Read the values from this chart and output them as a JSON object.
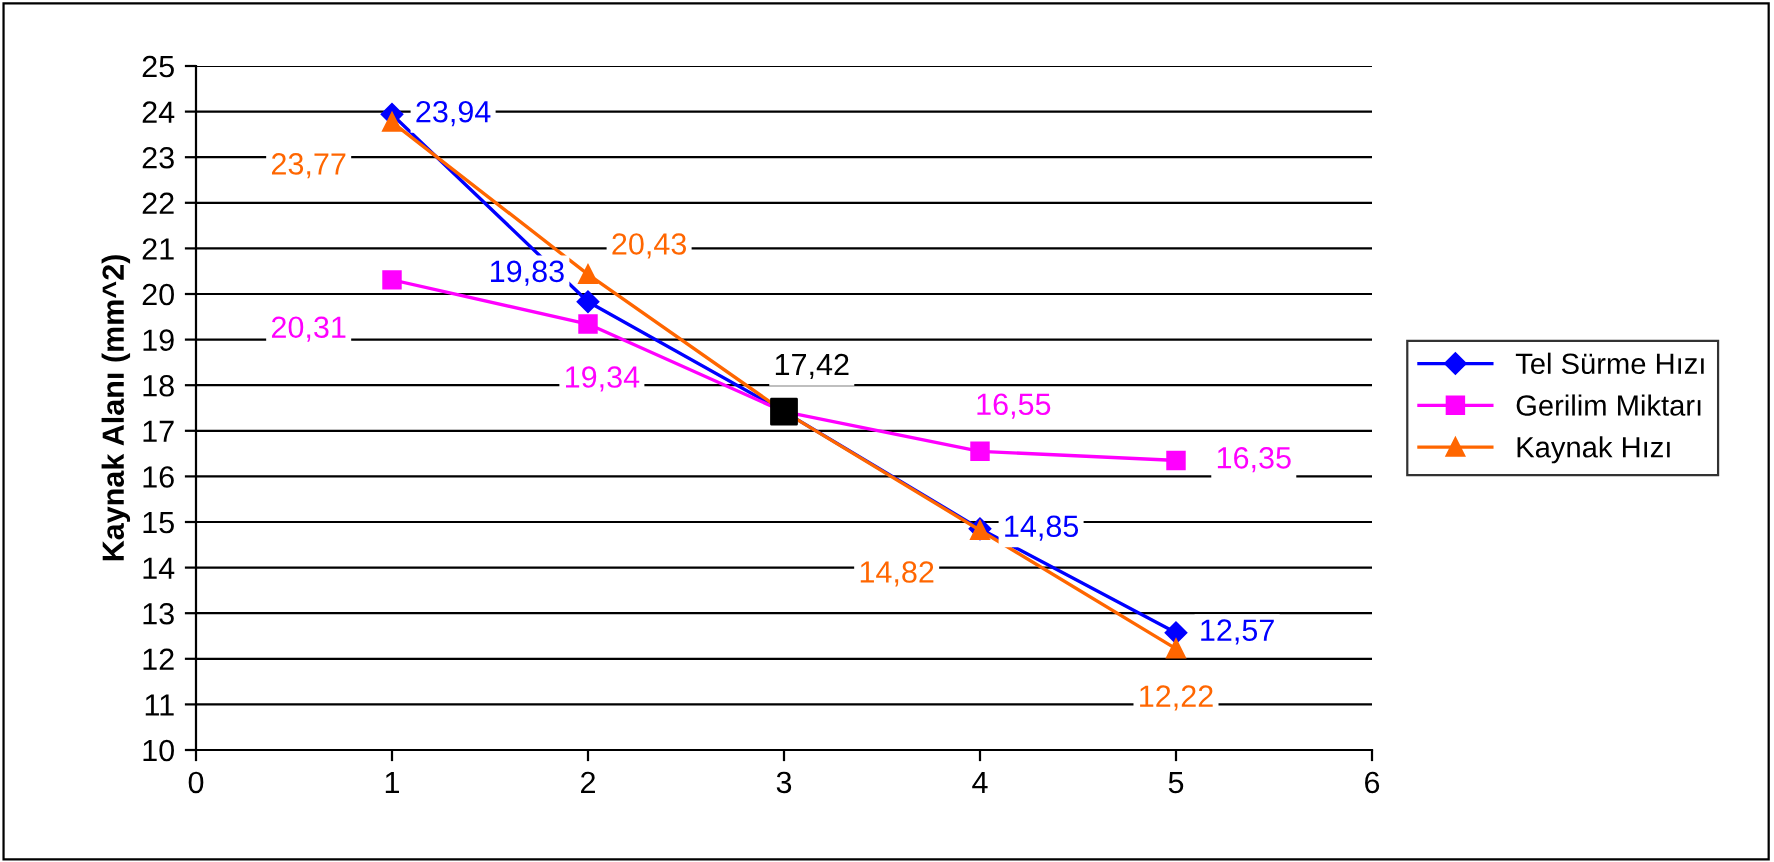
{
  "chart_data": {
    "type": "line",
    "ylabel": "Kaynak Alanı (mm^2)",
    "x": [
      1,
      2,
      3,
      4,
      5
    ],
    "xlim": [
      0,
      6
    ],
    "xticks": [
      0,
      1,
      2,
      3,
      4,
      5,
      6
    ],
    "ylim": [
      10,
      25
    ],
    "yticks": [
      10,
      11,
      12,
      13,
      14,
      15,
      16,
      17,
      18,
      19,
      20,
      21,
      22,
      23,
      24,
      25
    ],
    "grid": "y",
    "legend": "right",
    "series": [
      {
        "name": "Tel Sürme Hızı",
        "color": "#0000ff",
        "marker": "diamond",
        "values": [
          23.94,
          19.83,
          17.42,
          14.85,
          12.57
        ],
        "value_labels": [
          "23,94",
          "19,83",
          null,
          "14,85",
          "12,57"
        ]
      },
      {
        "name": "Gerilim Miktarı",
        "color": "#ff00ff",
        "marker": "square",
        "values": [
          20.31,
          19.34,
          17.42,
          16.55,
          16.35
        ],
        "value_labels": [
          "20,31",
          "19,34",
          null,
          "16,55",
          "16,35"
        ]
      },
      {
        "name": "Kaynak Hızı",
        "color": "#ff6600",
        "marker": "triangle",
        "values": [
          23.77,
          20.43,
          17.42,
          14.82,
          12.22
        ],
        "value_labels": [
          "23,77",
          "20,43",
          null,
          "14,82",
          "12,22"
        ]
      },
      {
        "type": "scatter",
        "color": "#000000",
        "marker": "square",
        "x": [
          3
        ],
        "values": [
          17.42
        ],
        "value_labels": [
          "17,42"
        ]
      }
    ]
  }
}
